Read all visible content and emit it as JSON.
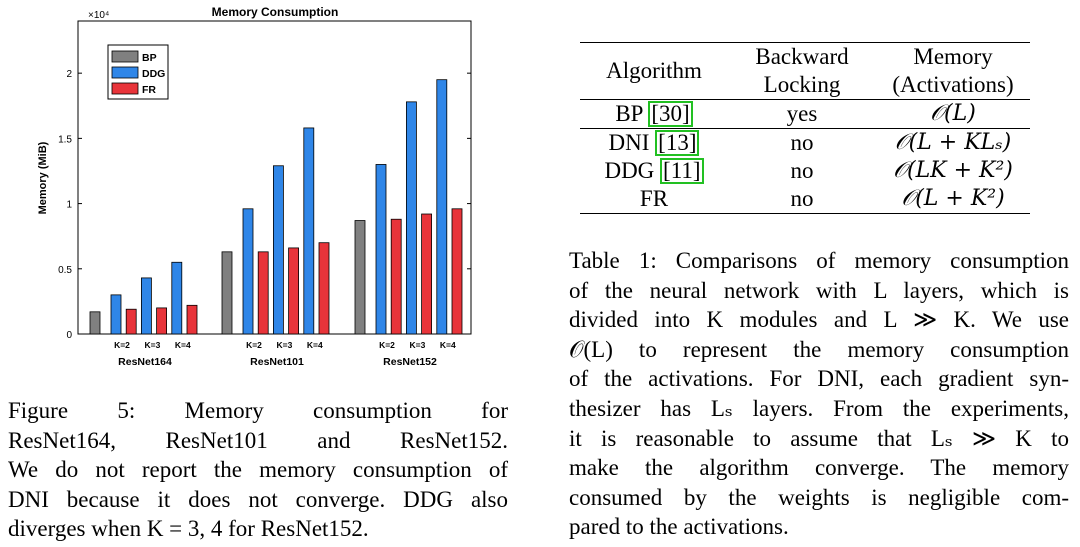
{
  "chart_data": {
    "type": "bar",
    "title": "Memory Consumption",
    "ylabel": "Memory (MiB)",
    "y_exponent": "×10⁴",
    "ylim": [
      0,
      2.4
    ],
    "yticks": [
      "0",
      "0.5",
      "1",
      "1.5",
      "2"
    ],
    "ytick_values": [
      0,
      0.5,
      1,
      1.5,
      2
    ],
    "legend_position": "top-left",
    "series": [
      {
        "name": "BP",
        "color": "#808080"
      },
      {
        "name": "DDG",
        "color": "#2f86e8"
      },
      {
        "name": "FR",
        "color": "#e8343a"
      }
    ],
    "groups": [
      {
        "name": "ResNet164",
        "bars": [
          {
            "series": "BP",
            "label": "",
            "value": 0.17
          },
          {
            "series": "DDG",
            "label": "K=2",
            "value": 0.3
          },
          {
            "series": "FR",
            "label": "",
            "value": 0.19
          },
          {
            "series": "DDG",
            "label": "K=3",
            "value": 0.43
          },
          {
            "series": "FR",
            "label": "",
            "value": 0.2
          },
          {
            "series": "DDG",
            "label": "K=4",
            "value": 0.55
          },
          {
            "series": "FR",
            "label": "",
            "value": 0.22
          }
        ]
      },
      {
        "name": "ResNet101",
        "bars": [
          {
            "series": "BP",
            "label": "",
            "value": 0.63
          },
          {
            "series": "DDG",
            "label": "K=2",
            "value": 0.96
          },
          {
            "series": "FR",
            "label": "",
            "value": 0.63
          },
          {
            "series": "DDG",
            "label": "K=3",
            "value": 1.29
          },
          {
            "series": "FR",
            "label": "",
            "value": 0.66
          },
          {
            "series": "DDG",
            "label": "K=4",
            "value": 1.58
          },
          {
            "series": "FR",
            "label": "",
            "value": 0.7
          }
        ]
      },
      {
        "name": "ResNet152",
        "bars": [
          {
            "series": "BP",
            "label": "",
            "value": 0.87
          },
          {
            "series": "DDG",
            "label": "K=2",
            "value": 1.3
          },
          {
            "series": "FR",
            "label": "",
            "value": 0.88
          },
          {
            "series": "DDG",
            "label": "K=3",
            "value": 1.78
          },
          {
            "series": "FR",
            "label": "",
            "value": 0.92
          },
          {
            "series": "DDG",
            "label": "K=4",
            "value": 1.95
          },
          {
            "series": "FR",
            "label": "",
            "value": 0.96
          }
        ]
      }
    ]
  },
  "figure_caption": [
    "Figure 5: Memory consumption for",
    "ResNet164, ResNet101 and ResNet152.",
    "We do not report the memory consumption of",
    "DNI because it does not converge. DDG also",
    "diverges when K = 3, 4 for ResNet152."
  ],
  "table": {
    "headers": {
      "algorithm": "Algorithm",
      "locking_1": "Backward",
      "locking_2": "Locking",
      "memory_1": "Memory",
      "memory_2": "(Activations)"
    },
    "rows": [
      {
        "name": "BP",
        "ref": "30",
        "locking": "yes",
        "memory": "𝒪(L)"
      },
      {
        "name": "DNI",
        "ref": "13",
        "locking": "no",
        "memory": "𝒪(L + KLₛ)"
      },
      {
        "name": "DDG",
        "ref": "11",
        "locking": "no",
        "memory": "𝒪(LK + K²)"
      },
      {
        "name": "FR",
        "ref": "",
        "locking": "no",
        "memory": "𝒪(L + K²)"
      }
    ]
  },
  "table_caption": [
    "Table 1: Comparisons of memory consumption",
    "of the neural network with L layers, which is",
    "divided into K modules and L ≫ K. We use",
    "𝒪(L) to represent the memory consumption",
    "of the activations. For DNI, each gradient syn-",
    "thesizer has Lₛ layers. From the experiments,",
    "it is reasonable to assume that Lₛ ≫ K to",
    "make the algorithm converge. The memory",
    "consumed by the weights is negligible com-",
    "pared to the activations."
  ]
}
